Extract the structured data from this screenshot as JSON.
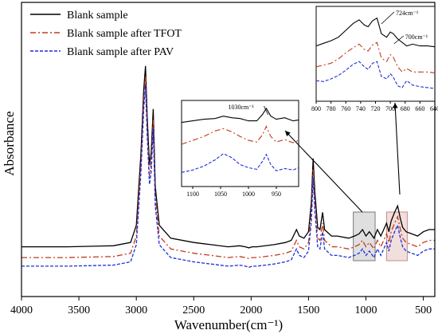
{
  "chart_data": {
    "type": "line",
    "title": "",
    "xlabel": "Wavenumber(cm⁻¹)",
    "ylabel": "Absorbance",
    "x_reversed": true,
    "xlim": [
      4000,
      400
    ],
    "ylim": [
      0,
      1
    ],
    "yticks_shown": false,
    "xticks": [
      4000,
      3500,
      3000,
      2500,
      2000,
      1500,
      1000,
      500
    ],
    "xtick_labels": [
      "4000",
      "3500",
      "3000",
      "2500",
      "2000",
      "1500",
      "1000",
      "500"
    ],
    "legend_placement": "top-left",
    "series": [
      {
        "name": "Blank sample",
        "color": "#000000",
        "dash": "solid",
        "x": [
          4000,
          3600,
          3200,
          3050,
          3000,
          2960,
          2935,
          2920,
          2905,
          2885,
          2870,
          2853,
          2835,
          2800,
          2700,
          2500,
          2350,
          2200,
          2100,
          2050,
          2020,
          1990,
          1950,
          1800,
          1700,
          1650,
          1605,
          1580,
          1540,
          1500,
          1475,
          1460,
          1445,
          1420,
          1400,
          1377,
          1360,
          1300,
          1250,
          1150,
          1100,
          1060,
          1030,
          1000,
          970,
          930,
          900,
          870,
          820,
          800,
          780,
          750,
          724,
          700,
          680,
          650,
          600,
          550,
          500,
          450,
          400
        ],
        "y": [
          0.12,
          0.12,
          0.125,
          0.14,
          0.22,
          0.55,
          0.85,
          0.96,
          0.72,
          0.5,
          0.56,
          0.76,
          0.4,
          0.22,
          0.16,
          0.14,
          0.13,
          0.12,
          0.125,
          0.12,
          0.115,
          0.12,
          0.12,
          0.13,
          0.14,
          0.15,
          0.2,
          0.17,
          0.16,
          0.19,
          0.33,
          0.53,
          0.38,
          0.21,
          0.2,
          0.28,
          0.2,
          0.17,
          0.17,
          0.16,
          0.17,
          0.18,
          0.2,
          0.17,
          0.19,
          0.16,
          0.2,
          0.17,
          0.23,
          0.19,
          0.24,
          0.28,
          0.31,
          0.25,
          0.21,
          0.19,
          0.18,
          0.17,
          0.19,
          0.2,
          0.2
        ]
      },
      {
        "name": "Blank sample after TFOT",
        "color": "#c23b1e",
        "dash": "dash-dot",
        "x": [
          4000,
          3600,
          3200,
          3050,
          3000,
          2960,
          2935,
          2920,
          2905,
          2885,
          2870,
          2853,
          2835,
          2800,
          2700,
          2500,
          2350,
          2200,
          2100,
          2050,
          2020,
          1990,
          1950,
          1800,
          1700,
          1650,
          1605,
          1580,
          1540,
          1500,
          1475,
          1460,
          1445,
          1420,
          1400,
          1377,
          1360,
          1300,
          1250,
          1150,
          1100,
          1060,
          1030,
          1000,
          970,
          930,
          900,
          870,
          820,
          800,
          780,
          750,
          724,
          700,
          680,
          650,
          600,
          550,
          500,
          450,
          400
        ],
        "y": [
          0.07,
          0.07,
          0.075,
          0.09,
          0.17,
          0.5,
          0.8,
          0.91,
          0.67,
          0.45,
          0.51,
          0.71,
          0.35,
          0.17,
          0.11,
          0.09,
          0.08,
          0.07,
          0.075,
          0.07,
          0.065,
          0.07,
          0.07,
          0.08,
          0.09,
          0.1,
          0.15,
          0.12,
          0.11,
          0.14,
          0.28,
          0.48,
          0.33,
          0.16,
          0.15,
          0.23,
          0.15,
          0.12,
          0.12,
          0.11,
          0.12,
          0.13,
          0.15,
          0.12,
          0.14,
          0.11,
          0.15,
          0.12,
          0.18,
          0.14,
          0.19,
          0.23,
          0.26,
          0.2,
          0.16,
          0.14,
          0.13,
          0.12,
          0.14,
          0.15,
          0.15
        ]
      },
      {
        "name": "Blank sample after PAV",
        "color": "#1f2fd6",
        "dash": "dashed",
        "x": [
          4000,
          3600,
          3200,
          3050,
          3000,
          2960,
          2935,
          2920,
          2905,
          2885,
          2870,
          2853,
          2835,
          2800,
          2700,
          2500,
          2350,
          2200,
          2100,
          2050,
          2020,
          1990,
          1950,
          1800,
          1700,
          1650,
          1605,
          1580,
          1540,
          1500,
          1475,
          1460,
          1445,
          1420,
          1400,
          1377,
          1360,
          1300,
          1250,
          1150,
          1100,
          1060,
          1030,
          1000,
          970,
          930,
          900,
          870,
          820,
          800,
          780,
          750,
          724,
          700,
          680,
          650,
          600,
          550,
          500,
          450,
          400
        ],
        "y": [
          0.03,
          0.03,
          0.035,
          0.05,
          0.13,
          0.46,
          0.76,
          0.87,
          0.63,
          0.41,
          0.47,
          0.67,
          0.31,
          0.13,
          0.07,
          0.05,
          0.04,
          0.03,
          0.035,
          0.03,
          0.025,
          0.03,
          0.03,
          0.04,
          0.05,
          0.06,
          0.11,
          0.08,
          0.07,
          0.1,
          0.24,
          0.44,
          0.29,
          0.12,
          0.11,
          0.19,
          0.11,
          0.08,
          0.08,
          0.07,
          0.08,
          0.09,
          0.11,
          0.08,
          0.1,
          0.07,
          0.11,
          0.08,
          0.14,
          0.1,
          0.15,
          0.19,
          0.22,
          0.16,
          0.12,
          0.1,
          0.09,
          0.08,
          0.1,
          0.11,
          0.11
        ]
      }
    ],
    "zoom_regions": [
      {
        "xrange": [
          1110,
          920
        ],
        "color": "#7a7a7a"
      },
      {
        "xrange": [
          820,
          640
        ],
        "color": "#c98a86"
      }
    ],
    "insets": [
      {
        "xlim": [
          1120,
          910
        ],
        "xticks": [
          1100,
          1050,
          1000,
          950
        ],
        "xtick_labels": [
          "1100",
          "1050",
          "1000",
          "950"
        ],
        "annotations": [
          {
            "text": "1030cm⁻¹",
            "x": 965
          }
        ],
        "series": [
          {
            "x": [
              1120,
              1100,
              1080,
              1060,
              1045,
              1030,
              1015,
              1000,
              985,
              975,
              968,
              960,
              950,
              935,
              920,
              910
            ],
            "y": [
              0.78,
              0.8,
              0.82,
              0.83,
              0.86,
              0.84,
              0.83,
              0.8,
              0.8,
              0.88,
              0.96,
              0.86,
              0.82,
              0.84,
              0.8,
              0.81
            ]
          },
          {
            "x": [
              1120,
              1100,
              1080,
              1060,
              1045,
              1030,
              1015,
              1000,
              985,
              975,
              968,
              960,
              950,
              935,
              920,
              910
            ],
            "y": [
              0.5,
              0.55,
              0.6,
              0.67,
              0.7,
              0.66,
              0.6,
              0.55,
              0.53,
              0.62,
              0.73,
              0.6,
              0.53,
              0.56,
              0.52,
              0.55
            ]
          },
          {
            "x": [
              1120,
              1100,
              1080,
              1060,
              1045,
              1030,
              1015,
              1000,
              985,
              975,
              968,
              960,
              950,
              935,
              920,
              910
            ],
            "y": [
              0.14,
              0.17,
              0.22,
              0.3,
              0.38,
              0.33,
              0.24,
              0.2,
              0.18,
              0.28,
              0.37,
              0.24,
              0.16,
              0.19,
              0.17,
              0.2
            ]
          }
        ]
      },
      {
        "xlim": [
          800,
          640
        ],
        "xticks": [
          800,
          780,
          760,
          740,
          720,
          700,
          680,
          660,
          640
        ],
        "xtick_labels": [
          "800",
          "780",
          "760",
          "740",
          "720",
          "700",
          "680",
          "660",
          "640"
        ],
        "annotations": [
          {
            "text": "724cm⁻¹",
            "x": 712
          },
          {
            "text": "700cm⁻¹",
            "x": 695
          }
        ],
        "series": [
          {
            "x": [
              800,
              790,
              780,
              770,
              760,
              750,
              742,
              735,
              730,
              724,
              718,
              712,
              705,
              700,
              696,
              690,
              684,
              678,
              670,
              660,
              650,
              640
            ],
            "y": [
              0.6,
              0.63,
              0.66,
              0.7,
              0.78,
              0.86,
              0.9,
              0.84,
              0.82,
              0.89,
              0.92,
              0.74,
              0.7,
              0.76,
              0.74,
              0.68,
              0.64,
              0.6,
              0.62,
              0.6,
              0.6,
              0.59
            ]
          },
          {
            "x": [
              800,
              790,
              780,
              770,
              760,
              750,
              742,
              735,
              730,
              724,
              718,
              712,
              705,
              700,
              696,
              690,
              684,
              678,
              670,
              660,
              650,
              640
            ],
            "y": [
              0.36,
              0.38,
              0.4,
              0.45,
              0.52,
              0.58,
              0.62,
              0.56,
              0.54,
              0.61,
              0.64,
              0.46,
              0.42,
              0.5,
              0.47,
              0.36,
              0.3,
              0.34,
              0.3,
              0.3,
              0.3,
              0.29
            ]
          },
          {
            "x": [
              800,
              790,
              780,
              770,
              760,
              750,
              742,
              735,
              730,
              724,
              718,
              712,
              705,
              700,
              696,
              690,
              684,
              678,
              670,
              660,
              650,
              640
            ],
            "y": [
              0.2,
              0.19,
              0.22,
              0.26,
              0.32,
              0.39,
              0.42,
              0.36,
              0.33,
              0.4,
              0.42,
              0.25,
              0.22,
              0.28,
              0.24,
              0.14,
              0.12,
              0.2,
              0.15,
              0.13,
              0.12,
              0.11
            ]
          }
        ]
      }
    ]
  }
}
